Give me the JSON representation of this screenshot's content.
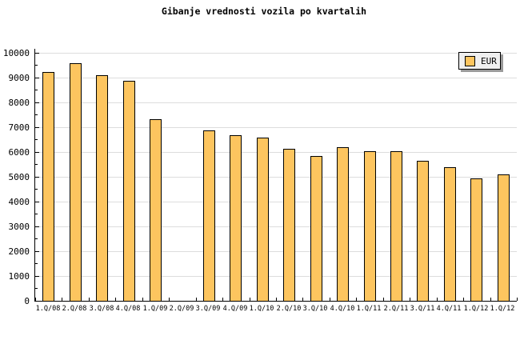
{
  "title": "Gibanje vrednosti vozila po kvartalih",
  "legend": {
    "label": "EUR",
    "swatch_color": "#FDC55F"
  },
  "colors": {
    "background": "#FFFFFF",
    "bar_fill": "#FDC55F",
    "bar_border": "#000000",
    "gridline": "#DDDDDD",
    "axis": "#000000",
    "legend_background": "#EFEFEF",
    "legend_shadow": "#9A9A9A",
    "text": "#000000"
  },
  "chart_data": {
    "type": "bar",
    "title": "Gibanje vrednosti vozila po kvartalih",
    "xlabel": "",
    "ylabel": "",
    "categories": [
      "1.Q/08",
      "2.Q/08",
      "3.Q/08",
      "4.Q/08",
      "1.Q/09",
      "2.Q/09",
      "3.Q/09",
      "4.Q/09",
      "1.Q/10",
      "2.Q/10",
      "3.Q/10",
      "4.Q/10",
      "1.Q/11",
      "2.Q/11",
      "3.Q/11",
      "4.Q/11",
      "1.Q/12",
      "1.Q/12"
    ],
    "series": [
      {
        "name": "EUR",
        "values": [
          9200,
          9550,
          9050,
          8850,
          7300,
          null,
          6850,
          6650,
          6550,
          6100,
          5800,
          6150,
          6000,
          6000,
          5600,
          5350,
          4900,
          5050
        ]
      }
    ],
    "ylim": [
      0,
      10000
    ],
    "yticks": [
      0,
      1000,
      2000,
      3000,
      4000,
      5000,
      6000,
      7000,
      8000,
      9000,
      10000
    ],
    "ytick_minor_interval": 500,
    "grid": true,
    "legend_position": "top-right",
    "note_missing_bar_category": "2.Q/09"
  }
}
